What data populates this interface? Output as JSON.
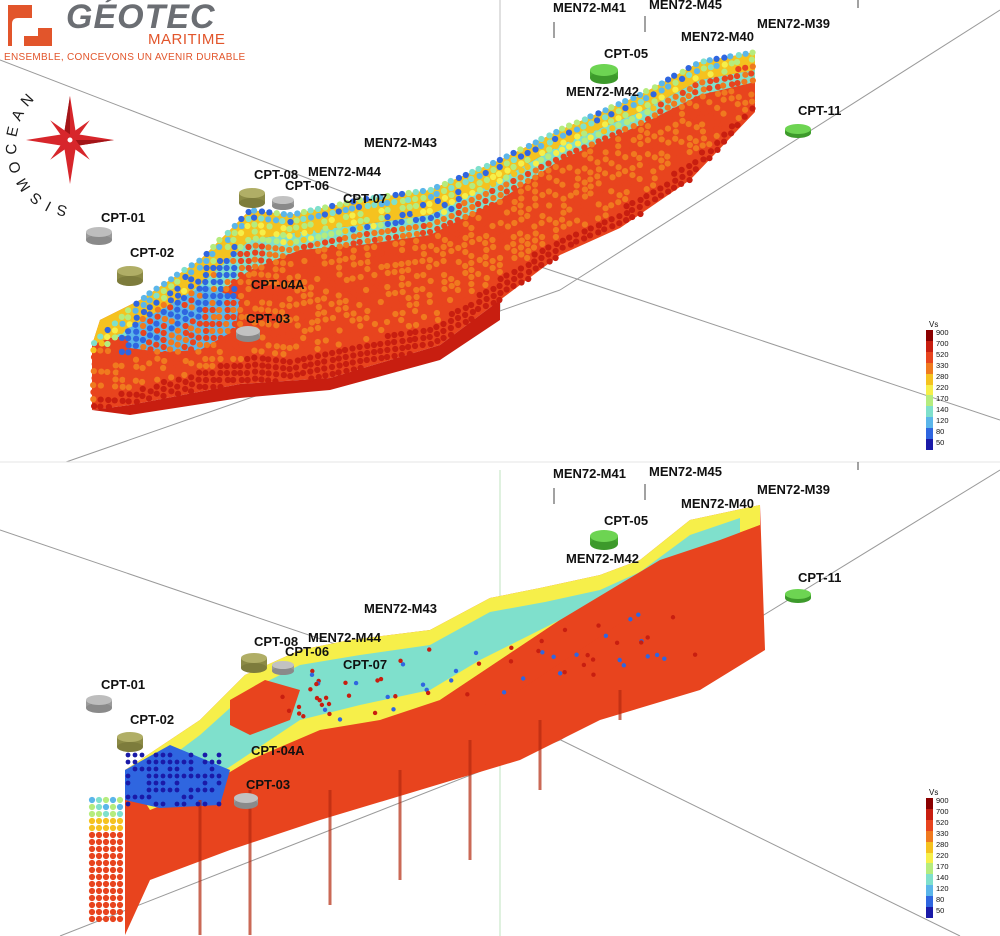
{
  "logo": {
    "brand": "GÉOTEC",
    "sub": "MARITIME",
    "tagline": "ENSEMBLE, CONCEVONS UN AVENIR DURABLE",
    "rose_text": "SISMOCEAN",
    "colors": {
      "brand": "#6b6e73",
      "accent": "#e2552b",
      "rose_red": "#d7262b"
    }
  },
  "panels": [
    {
      "id": "top",
      "style": "points",
      "cpt_labels": [
        "CPT-01",
        "CPT-02",
        "CPT-03",
        "CPT-04A",
        "CPT-05",
        "CPT-06",
        "CPT-07",
        "CPT-08",
        "CPT-11"
      ],
      "men_labels": [
        "MEN72-M41",
        "MEN72-M45",
        "MEN72-M39",
        "MEN72-M40",
        "MEN72-M42",
        "MEN72-M43",
        "MEN72-M44"
      ],
      "legend": {
        "title": "Vs",
        "ticks": [
          "900",
          "700",
          "520",
          "330",
          "280",
          "220",
          "170",
          "140",
          "120",
          "80",
          "50"
        ]
      }
    },
    {
      "id": "bottom",
      "style": "volume",
      "cpt_labels": [
        "CPT-01",
        "CPT-02",
        "CPT-03",
        "CPT-04A",
        "CPT-05",
        "CPT-06",
        "CPT-07",
        "CPT-08",
        "CPT-11"
      ],
      "men_labels": [
        "MEN72-M41",
        "MEN72-M45",
        "MEN72-M39",
        "MEN72-M40",
        "MEN72-M42",
        "MEN72-M43",
        "MEN72-M44"
      ],
      "legend": {
        "title": "Vs",
        "ticks": [
          "900",
          "700",
          "520",
          "330",
          "280",
          "220",
          "170",
          "140",
          "120",
          "80",
          "50"
        ]
      }
    }
  ],
  "scale_colors": [
    "#8b0000",
    "#c81e10",
    "#e8441e",
    "#f07a1f",
    "#f5c21f",
    "#f6ef4a",
    "#b5ec7e",
    "#7fe0cc",
    "#5bb6ea",
    "#2f66e0",
    "#1a1aa8"
  ],
  "cpt_colors": {
    "grey": "#a9a9a9",
    "olive": "#9c9a52",
    "green": "#53c03a"
  }
}
